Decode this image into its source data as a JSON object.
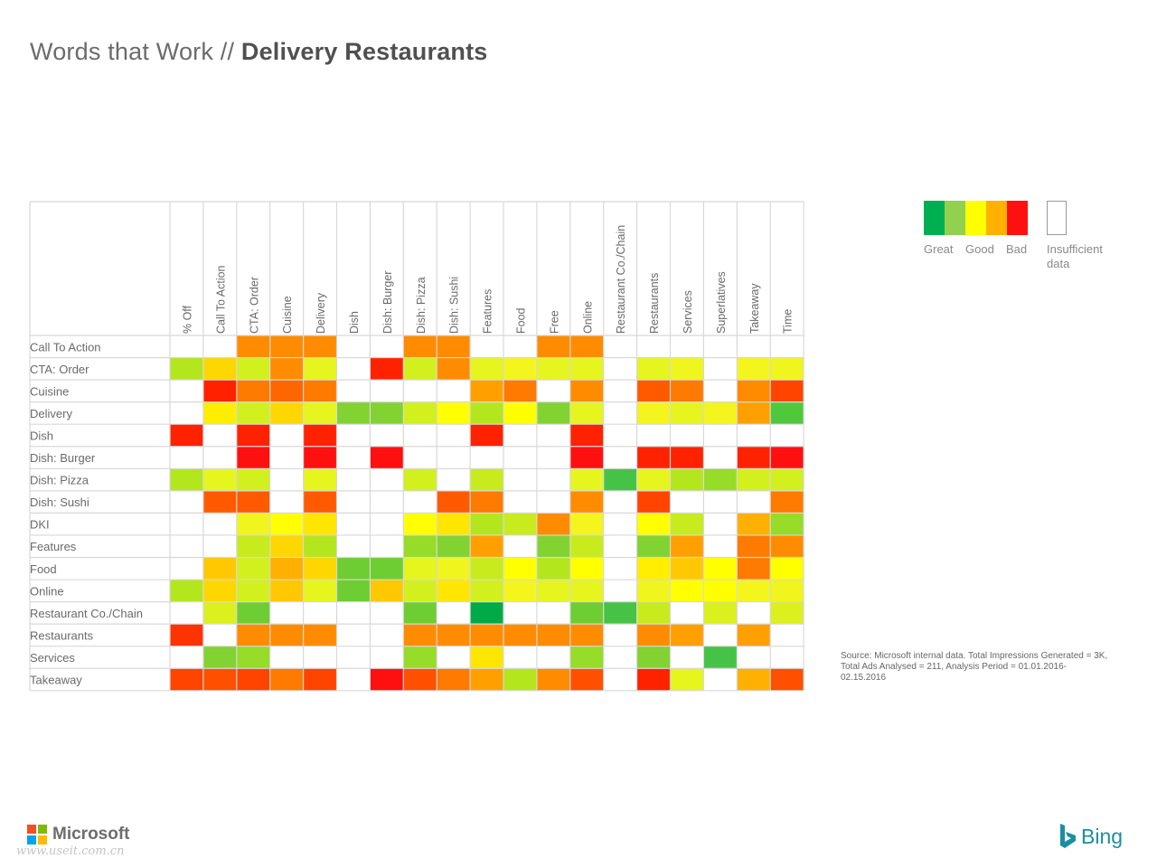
{
  "header": {
    "title_light": "Words that Work // ",
    "title_bold": "Delivery Restaurants"
  },
  "legend": {
    "colors": [
      "#00b050",
      "#92d050",
      "#ffff00",
      "#ffb000",
      "#ff1010"
    ],
    "great": "Great",
    "good": "Good",
    "bad": "Bad",
    "insufficient": "Insufficient data"
  },
  "source": "Source: Microsoft internal data. Total Impressions Generated = 3K, Total Ads Analysed = 211, Analysis Period = 01.01.2016-02.15.2016",
  "footer": {
    "microsoft": "Microsoft",
    "bing": "Bing",
    "watermark": "www.useit.com.cn",
    "ms_colors": [
      "#f25022",
      "#7fba00",
      "#00a4ef",
      "#ffb900"
    ]
  },
  "chart_data": {
    "type": "heatmap",
    "columns": [
      "% Off",
      "Call To Action",
      "CTA: Order",
      "Cuisine",
      "Delivery",
      "Dish",
      "Dish: Burger",
      "Dish: Pizza",
      "Dish: Sushi",
      "Features",
      "Food",
      "Free",
      "Online",
      "Restaurant Co./Chain",
      "Restaurants",
      "Services",
      "Superlatives",
      "Takeaway",
      "Time"
    ],
    "rows": [
      "Call To Action",
      "CTA: Order",
      "Cuisine",
      "Delivery",
      "Dish",
      "Dish: Burger",
      "Dish: Pizza",
      "Dish: Sushi",
      "DKI",
      "Features",
      "Food",
      "Online",
      "Restaurant Co./Chain",
      "Restaurants",
      "Services",
      "Takeaway"
    ],
    "scale": [
      "Great",
      "Good",
      "Bad"
    ],
    "cells": [
      [
        "",
        "",
        "#ff8c00",
        "#ff8c00",
        "#ff8c00",
        "",
        "",
        "#ff8c00",
        "#ff8c00",
        "",
        "",
        "#ff8c00",
        "#ff8c00",
        "",
        "",
        "",
        "",
        "",
        ""
      ],
      [
        "#b4e61e",
        "#ffd700",
        "#d2f01e",
        "#ff8c00",
        "#e6f51e",
        "",
        "#ff2200",
        "#d2f01e",
        "#ff8c00",
        "#e6f51e",
        "#f5f51e",
        "#e6f51e",
        "#e6f51e",
        "",
        "#e6f51e",
        "#f0f51e",
        "",
        "#f5f51e",
        "#f0f51e"
      ],
      [
        "",
        "#ff2200",
        "#ff7a00",
        "#ff6600",
        "#ff7a00",
        "",
        "",
        "",
        "",
        "#ffa000",
        "#ff7a00",
        "",
        "#ff8c00",
        "",
        "#ff5a00",
        "#ff7a00",
        "",
        "#ff8c00",
        "#ff4400"
      ],
      [
        "",
        "#ffee00",
        "#d2f01e",
        "#ffd700",
        "#e6f51e",
        "#82d232",
        "#82d232",
        "#d2f01e",
        "#ffff00",
        "#b4e61e",
        "#ffff00",
        "#82d232",
        "#e6f51e",
        "",
        "#f5f51e",
        "#e6f51e",
        "#f5f51e",
        "#ffa000",
        "#50c83c"
      ],
      [
        "#ff2200",
        "",
        "#ff2200",
        "",
        "#ff2200",
        "",
        "",
        "",
        "",
        "#ff2200",
        "",
        "",
        "#ff2200",
        "",
        "",
        "",
        "",
        "",
        ""
      ],
      [
        "",
        "",
        "#ff1010",
        "",
        "#ff1010",
        "",
        "#ff1010",
        "",
        "",
        "",
        "",
        "",
        "#ff1010",
        "",
        "#ff2200",
        "#ff2200",
        "",
        "#ff2200",
        "#ff1010"
      ],
      [
        "#b4e61e",
        "#e6f51e",
        "#d2f01e",
        "",
        "#e6f51e",
        "",
        "",
        "#d2f01e",
        "",
        "#c8eb1e",
        "",
        "",
        "#e6f51e",
        "#46c346",
        "#e6f51e",
        "#b4e61e",
        "#96dc28",
        "#d2f01e",
        "#d2f01e"
      ],
      [
        "",
        "#ff5a00",
        "#ff5a00",
        "",
        "#ff5a00",
        "",
        "",
        "",
        "#ff5a00",
        "#ff7a00",
        "",
        "",
        "#ff8c00",
        "",
        "#ff4400",
        "",
        "",
        "",
        "#ff7a00"
      ],
      [
        "",
        "",
        "#f0f51e",
        "#ffff00",
        "#ffe600",
        "",
        "",
        "#ffff00",
        "#ffe600",
        "#b4e61e",
        "#c8eb1e",
        "#ff8c00",
        "#f5f51e",
        "",
        "#ffff00",
        "#c8eb1e",
        "",
        "#ffb000",
        "#96dc28"
      ],
      [
        "",
        "",
        "#c8eb1e",
        "#ffd700",
        "#b4e61e",
        "",
        "",
        "#96dc28",
        "#82d232",
        "#ffa000",
        "",
        "#82d232",
        "#c8eb1e",
        "",
        "#82d232",
        "#ffa000",
        "",
        "#ff7a00",
        "#ff8c00"
      ],
      [
        "",
        "#ffc800",
        "#d2f01e",
        "#ffb000",
        "#ffd700",
        "#6ecd32",
        "#6ecd32",
        "#e6f51e",
        "#f0f51e",
        "#c8eb1e",
        "#ffff00",
        "#b4e61e",
        "#ffff00",
        "",
        "#ffee00",
        "#ffc800",
        "#ffff00",
        "#ff7a00",
        "#ffff00"
      ],
      [
        "#b4e61e",
        "#ffd700",
        "#d2f01e",
        "#ffc800",
        "#e6f51e",
        "#6ecd32",
        "#ffc800",
        "#d2f01e",
        "#ffe600",
        "#d2f01e",
        "#f5f51e",
        "#e6f51e",
        "#e6f51e",
        "",
        "#f0f51e",
        "#ffff00",
        "#ffff00",
        "#f5f51e",
        "#f0f51e"
      ],
      [
        "",
        "#dcf01e",
        "#6ecd32",
        "",
        "",
        "",
        "",
        "#6ecd32",
        "",
        "#00aa46",
        "",
        "",
        "#6ecd32",
        "#46c346",
        "#c8eb1e",
        "",
        "#dcf01e",
        "",
        "#dcf01e"
      ],
      [
        "#ff3300",
        "",
        "#ff8c00",
        "#ff8c00",
        "#ff8c00",
        "",
        "",
        "#ff8c00",
        "#ff8c00",
        "#ff8c00",
        "#ff8c00",
        "#ff8c00",
        "#ff8c00",
        "",
        "#ff8c00",
        "#ffa000",
        "",
        "#ffa000",
        ""
      ],
      [
        "",
        "#82d232",
        "#96dc28",
        "",
        "",
        "",
        "",
        "#96dc28",
        "",
        "#ffe600",
        "",
        "",
        "#96dc28",
        "",
        "#82d232",
        "",
        "#46c346",
        "",
        ""
      ],
      [
        "#ff4400",
        "#ff5000",
        "#ff4400",
        "#ff7a00",
        "#ff4400",
        "",
        "#ff1010",
        "#ff5000",
        "#ff7a00",
        "#ffa000",
        "#b4e61e",
        "#ff8c00",
        "#ff5000",
        "",
        "#ff2200",
        "#e6f51e",
        "",
        "#ffb000",
        "#ff5000"
      ]
    ]
  }
}
